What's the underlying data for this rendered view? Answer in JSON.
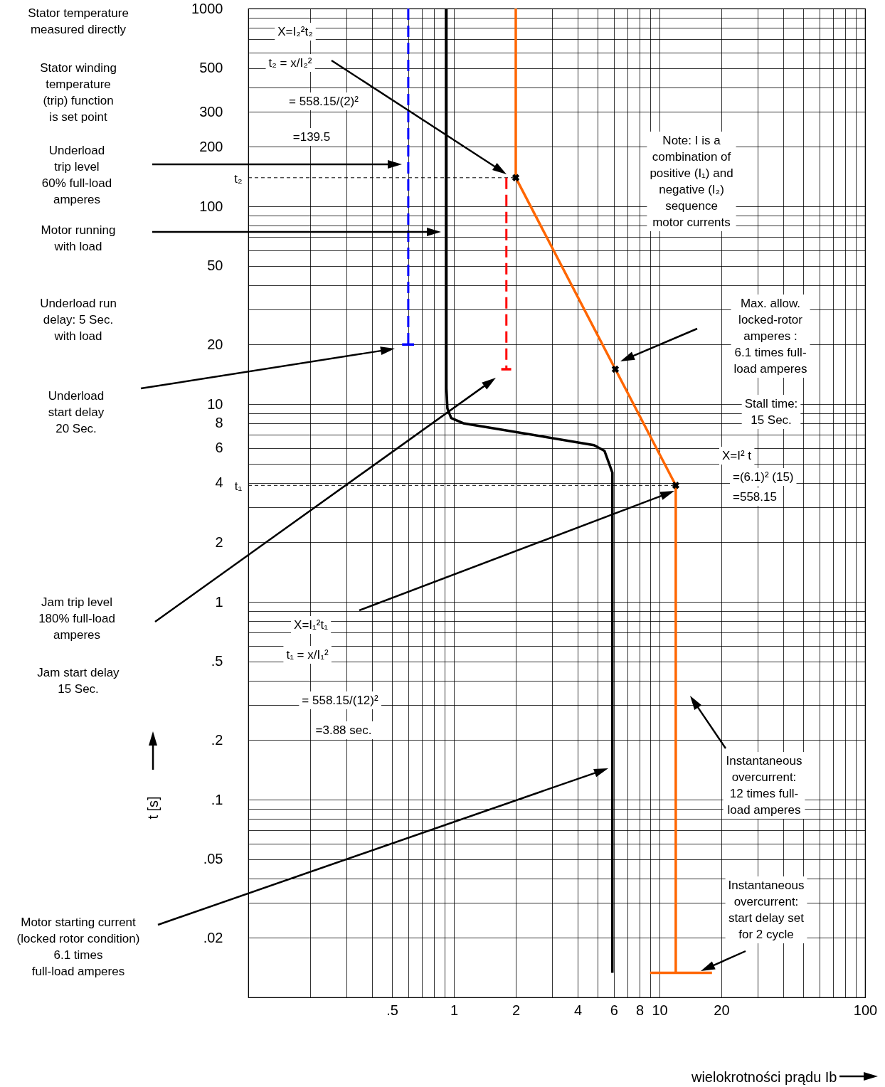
{
  "chart_data": {
    "type": "line",
    "xlabel": "wielokrotności prądu Ib",
    "ylabel": "t [s]",
    "log": "xy",
    "grid": true,
    "xlim": [
      0.1,
      100
    ],
    "ylim": [
      0.01,
      1000
    ],
    "xticks": [
      {
        "value": 0.1,
        "label": null
      },
      {
        "value": 0.2,
        "label": null
      },
      {
        "value": 0.3,
        "label": null
      },
      {
        "value": 0.4,
        "label": null
      },
      {
        "value": 0.5,
        "label": ".5"
      },
      {
        "value": 0.6,
        "label": null
      },
      {
        "value": 0.7,
        "label": null
      },
      {
        "value": 0.8,
        "label": null
      },
      {
        "value": 0.9,
        "label": null
      },
      1,
      2,
      {
        "value": 3,
        "label": null
      },
      4,
      {
        "value": 5,
        "label": null
      },
      6,
      {
        "value": 7,
        "label": null
      },
      8,
      {
        "value": 9,
        "label": null
      },
      10,
      20,
      {
        "value": 30,
        "label": null
      },
      {
        "value": 40,
        "label": null
      },
      {
        "value": 50,
        "label": null
      },
      {
        "value": 60,
        "label": null
      },
      {
        "value": 70,
        "label": null
      },
      {
        "value": 80,
        "label": null
      },
      {
        "value": 90,
        "label": null
      },
      100
    ],
    "yticks": [
      {
        "value": 0.01,
        "label": null
      },
      {
        "value": 0.02,
        "label": ".02"
      },
      {
        "value": 0.03,
        "label": null
      },
      {
        "value": 0.04,
        "label": null
      },
      {
        "value": 0.05,
        "label": ".05"
      },
      {
        "value": 0.06,
        "label": null
      },
      {
        "value": 0.07,
        "label": null
      },
      {
        "value": 0.08,
        "label": null
      },
      {
        "value": 0.09,
        "label": null
      },
      {
        "value": 0.1,
        "label": ".1"
      },
      {
        "value": 0.2,
        "label": ".2"
      },
      {
        "value": 0.3,
        "label": null
      },
      {
        "value": 0.4,
        "label": null
      },
      {
        "value": 0.5,
        "label": ".5"
      },
      {
        "value": 0.6,
        "label": null
      },
      {
        "value": 0.7,
        "label": null
      },
      {
        "value": 0.8,
        "label": null
      },
      {
        "value": 0.9,
        "label": null
      },
      1,
      2,
      {
        "value": 3,
        "label": null
      },
      4,
      {
        "value": 5,
        "label": null
      },
      6,
      {
        "value": 7,
        "label": null
      },
      8,
      {
        "value": 9,
        "label": null
      },
      10,
      20,
      {
        "value": 30,
        "label": null
      },
      {
        "value": 40,
        "label": null
      },
      50,
      {
        "value": 60,
        "label": null
      },
      {
        "value": 70,
        "label": null
      },
      {
        "value": 80,
        "label": null
      },
      {
        "value": 90,
        "label": null
      },
      100,
      200,
      300,
      {
        "value": 400,
        "label": null
      },
      500,
      {
        "value": 600,
        "label": null
      },
      {
        "value": 700,
        "label": null
      },
      {
        "value": 800,
        "label": null
      },
      {
        "value": 900,
        "label": null
      },
      1000
    ],
    "series": [
      {
        "color": "#000000",
        "line_style": "dotted",
        "x": [
          0.1,
          2
        ],
        "values": [
          139.5,
          139.5
        ]
      },
      {
        "color": "#000000",
        "line_style": "dotted",
        "x": [
          0.1,
          12
        ],
        "values": [
          3.88,
          3.88
        ]
      },
      {
        "color": "#0000ff",
        "line_style": "dashed",
        "x": [
          0.6,
          0.6
        ],
        "values": [
          1000,
          20
        ]
      },
      {
        "color": "#0000ff",
        "line_style": "solid",
        "x": [
          0.56,
          0.64
        ],
        "values": [
          20,
          20
        ]
      },
      {
        "color": "#ff0000",
        "line_style": "dashed",
        "x": [
          1.8,
          1.8
        ],
        "values": [
          139.5,
          15
        ]
      },
      {
        "color": "#ff0000",
        "line_style": "solid",
        "x": [
          1.7,
          1.9
        ],
        "values": [
          15,
          15
        ]
      },
      {
        "color": "#000000",
        "line_style": "solid",
        "x": [
          0.92,
          0.92,
          0.93,
          0.97,
          1.11,
          4.8,
          5.4,
          5.9,
          5.9
        ],
        "values": [
          1000,
          12,
          9.5,
          8.5,
          8.0,
          6.2,
          5.8,
          4.5,
          0.0133
        ]
      },
      {
        "color": "#ff6600",
        "line_style": "solid",
        "x": [
          2,
          2,
          6.1,
          12,
          12
        ],
        "values": [
          1000,
          139.5,
          15,
          3.88,
          0.0133
        ]
      },
      {
        "color": "#ff6600",
        "line_style": "solid",
        "x": [
          9,
          18
        ],
        "values": [
          0.0133,
          0.0133
        ]
      },
      {
        "type": "scatter",
        "color": "#000000",
        "marker": "cross",
        "x": [
          2,
          6.1,
          12
        ],
        "values": [
          139.5,
          15,
          3.88
        ]
      }
    ],
    "annotations": [
      "Stator temperature\nmeasured directly",
      "Stator winding\ntemperature\n(trip) function\nis set point",
      "Underload\ntrip level\n60% full-load\namperes",
      "Motor running\nwith load",
      "Underload run\ndelay: 5 Sec.\nwith load",
      "Underload\nstart delay\n20 Sec.",
      "Jam trip level\n180% full-load\namperes",
      "Jam start delay\n15 Sec.",
      "Motor starting current\n(locked rotor condition)\n6.1 times\nfull-load amperes",
      "X=I₂²t₂",
      "t₂ = x/I₂²",
      "= 558.15/(2)²",
      "=139.5",
      "Note: I is a\ncombination of\npositive (I₁) and\nnegative (I₂)\nsequence\nmotor currents",
      "Max. allow.\nlocked-rotor\namperes :\n6.1 times full-\nload amperes",
      "Stall time:\n15 Sec.",
      "X=I² t",
      "=(6.1)² (15)",
      "=558.15",
      "Instantaneous\novercurrent:\n12 times full-\nload amperes",
      "Instantaneous\novercurrent:\nstart delay set\nfor 2 cycle",
      "X=I₁²t₁",
      "t₁ = x/I₁²",
      "= 558.15/(12)²",
      "=3.88 sec.",
      {
        "text": "t₂",
        "x": 0.1,
        "y": 139.5
      },
      {
        "text": "t₁",
        "x": 0.1,
        "y": 3.88
      }
    ]
  }
}
